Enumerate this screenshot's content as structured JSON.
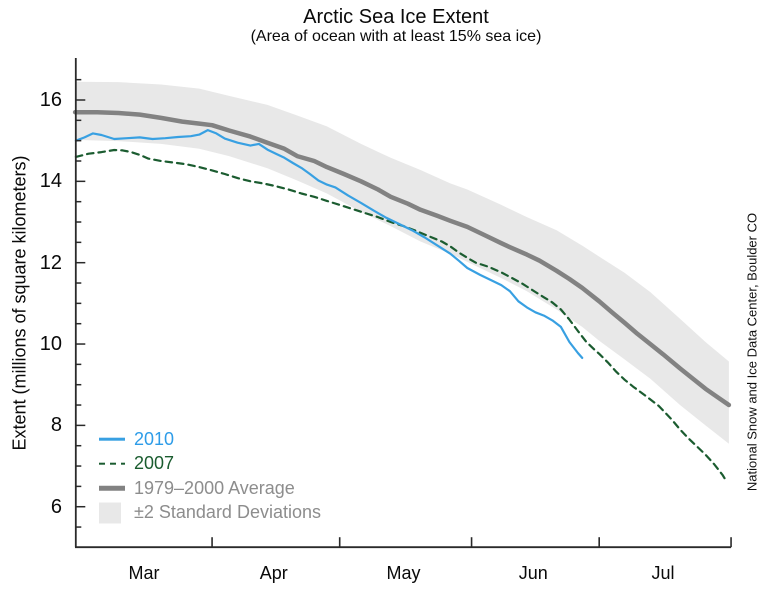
{
  "chart_data": {
    "type": "line",
    "title": "Arctic Sea Ice Extent",
    "subtitle": "(Area of ocean with at least 15% sea ice)",
    "ylabel": "Extent (millions of square kilometers)",
    "credit": "National Snow and Ice Data Center, Boulder CO",
    "x_unit": "days since Mar 1",
    "grid": false,
    "y_axis": {
      "range": [
        5.0,
        17.05
      ],
      "major_ticks": [
        16,
        14,
        12,
        10,
        8,
        6
      ],
      "minor_step": 0.5,
      "minor_range": [
        5.5,
        16.5
      ]
    },
    "x_axis": {
      "tick_days": [
        31,
        61,
        92,
        122,
        153
      ],
      "months": [
        {
          "label": "Mar",
          "center_day": 15
        },
        {
          "label": "Apr",
          "center_day": 45.5
        },
        {
          "label": "May",
          "center_day": 76
        },
        {
          "label": "Jun",
          "center_day": 106.5
        },
        {
          "label": "Jul",
          "center_day": 137
        }
      ]
    },
    "band": {
      "name": "±2 Standard Deviations",
      "color": "#e8e8e8",
      "points": [
        [
          -1.2,
          15.02,
          16.45
        ],
        [
          9,
          14.99,
          16.44
        ],
        [
          19,
          14.92,
          16.38
        ],
        [
          28,
          14.8,
          16.28
        ],
        [
          35,
          14.62,
          16.1
        ],
        [
          44,
          14.32,
          15.88
        ],
        [
          51,
          14.02,
          15.62
        ],
        [
          58,
          13.7,
          15.35
        ],
        [
          66,
          13.25,
          14.92
        ],
        [
          73,
          12.9,
          14.58
        ],
        [
          80,
          12.52,
          14.28
        ],
        [
          87,
          12.22,
          13.95
        ],
        [
          91,
          12.02,
          13.8
        ],
        [
          99,
          11.62,
          13.42
        ],
        [
          105,
          11.3,
          13.12
        ],
        [
          112,
          10.85,
          12.8
        ],
        [
          118,
          10.42,
          12.42
        ],
        [
          122,
          10.08,
          12.15
        ],
        [
          128,
          9.62,
          11.75
        ],
        [
          134,
          9.15,
          11.28
        ],
        [
          141,
          8.5,
          10.62
        ],
        [
          147,
          8.0,
          10.05
        ],
        [
          152.5,
          7.55,
          9.57
        ]
      ]
    },
    "series": [
      {
        "name": "1979–2000 Average",
        "color": "#828282",
        "style": "solid",
        "width": 4.5,
        "points": [
          [
            -1.2,
            15.7
          ],
          [
            4,
            15.7
          ],
          [
            9,
            15.68
          ],
          [
            14,
            15.64
          ],
          [
            19,
            15.56
          ],
          [
            24,
            15.47
          ],
          [
            28,
            15.42
          ],
          [
            31,
            15.38
          ],
          [
            35,
            15.25
          ],
          [
            40,
            15.1
          ],
          [
            44,
            14.95
          ],
          [
            48,
            14.8
          ],
          [
            51,
            14.62
          ],
          [
            55,
            14.5
          ],
          [
            58,
            14.35
          ],
          [
            62,
            14.18
          ],
          [
            66,
            14.0
          ],
          [
            70,
            13.8
          ],
          [
            73,
            13.62
          ],
          [
            77,
            13.45
          ],
          [
            80,
            13.3
          ],
          [
            84,
            13.15
          ],
          [
            87,
            13.03
          ],
          [
            91,
            12.88
          ],
          [
            95,
            12.68
          ],
          [
            99,
            12.48
          ],
          [
            101,
            12.38
          ],
          [
            105,
            12.2
          ],
          [
            108,
            12.05
          ],
          [
            112,
            11.8
          ],
          [
            115,
            11.6
          ],
          [
            118,
            11.38
          ],
          [
            122,
            11.05
          ],
          [
            125,
            10.78
          ],
          [
            128,
            10.52
          ],
          [
            131,
            10.25
          ],
          [
            134,
            10.0
          ],
          [
            137,
            9.75
          ],
          [
            141,
            9.4
          ],
          [
            144,
            9.15
          ],
          [
            147,
            8.9
          ],
          [
            150,
            8.68
          ],
          [
            152.5,
            8.5
          ]
        ]
      },
      {
        "name": "2007",
        "color": "#1b5c30",
        "style": "dashed",
        "width": 2.2,
        "points": [
          [
            -1,
            14.6
          ],
          [
            2,
            14.68
          ],
          [
            5,
            14.72
          ],
          [
            8,
            14.77
          ],
          [
            10,
            14.76
          ],
          [
            12,
            14.72
          ],
          [
            14,
            14.65
          ],
          [
            16,
            14.56
          ],
          [
            19,
            14.5
          ],
          [
            22,
            14.46
          ],
          [
            25,
            14.42
          ],
          [
            28,
            14.35
          ],
          [
            31,
            14.27
          ],
          [
            34,
            14.18
          ],
          [
            37,
            14.08
          ],
          [
            40,
            14.0
          ],
          [
            43,
            13.95
          ],
          [
            46,
            13.88
          ],
          [
            49,
            13.8
          ],
          [
            52,
            13.7
          ],
          [
            55,
            13.62
          ],
          [
            58,
            13.52
          ],
          [
            61,
            13.42
          ],
          [
            64,
            13.32
          ],
          [
            67,
            13.22
          ],
          [
            70,
            13.12
          ],
          [
            73,
            13.0
          ],
          [
            76,
            12.9
          ],
          [
            79,
            12.78
          ],
          [
            82,
            12.65
          ],
          [
            85,
            12.52
          ],
          [
            87,
            12.4
          ],
          [
            89,
            12.25
          ],
          [
            91,
            12.12
          ],
          [
            93,
            12.0
          ],
          [
            96,
            11.9
          ],
          [
            99,
            11.76
          ],
          [
            101,
            11.65
          ],
          [
            104,
            11.48
          ],
          [
            107,
            11.28
          ],
          [
            109,
            11.15
          ],
          [
            111,
            11.02
          ],
          [
            113,
            10.85
          ],
          [
            115,
            10.6
          ],
          [
            117,
            10.32
          ],
          [
            119,
            10.05
          ],
          [
            121,
            9.85
          ],
          [
            122,
            9.76
          ],
          [
            124,
            9.55
          ],
          [
            126,
            9.32
          ],
          [
            128,
            9.12
          ],
          [
            130,
            8.95
          ],
          [
            133,
            8.72
          ],
          [
            136,
            8.48
          ],
          [
            139,
            8.15
          ],
          [
            141,
            7.9
          ],
          [
            143,
            7.68
          ],
          [
            145,
            7.48
          ],
          [
            147,
            7.28
          ],
          [
            149,
            7.05
          ],
          [
            151,
            6.78
          ],
          [
            152,
            6.61
          ]
        ]
      },
      {
        "name": "2010",
        "color": "#38a0e2",
        "style": "solid",
        "width": 2.2,
        "points": [
          [
            -1,
            15.0
          ],
          [
            1,
            15.08
          ],
          [
            3,
            15.18
          ],
          [
            5,
            15.14
          ],
          [
            8,
            15.04
          ],
          [
            11,
            15.06
          ],
          [
            14,
            15.08
          ],
          [
            17,
            15.04
          ],
          [
            20,
            15.06
          ],
          [
            23,
            15.09
          ],
          [
            26,
            15.11
          ],
          [
            28,
            15.15
          ],
          [
            30,
            15.26
          ],
          [
            32,
            15.18
          ],
          [
            34,
            15.05
          ],
          [
            37,
            14.95
          ],
          [
            40,
            14.88
          ],
          [
            42,
            14.92
          ],
          [
            44,
            14.78
          ],
          [
            46,
            14.68
          ],
          [
            48,
            14.58
          ],
          [
            50,
            14.45
          ],
          [
            52,
            14.33
          ],
          [
            54,
            14.18
          ],
          [
            56,
            14.02
          ],
          [
            58,
            13.92
          ],
          [
            60,
            13.85
          ],
          [
            63,
            13.65
          ],
          [
            66,
            13.47
          ],
          [
            69,
            13.28
          ],
          [
            72,
            13.1
          ],
          [
            75,
            12.95
          ],
          [
            78,
            12.8
          ],
          [
            81,
            12.62
          ],
          [
            84,
            12.42
          ],
          [
            87,
            12.22
          ],
          [
            89,
            12.05
          ],
          [
            91,
            11.87
          ],
          [
            94,
            11.7
          ],
          [
            97,
            11.55
          ],
          [
            99,
            11.45
          ],
          [
            101,
            11.3
          ],
          [
            103,
            11.05
          ],
          [
            105,
            10.9
          ],
          [
            107,
            10.78
          ],
          [
            109,
            10.7
          ],
          [
            111,
            10.58
          ],
          [
            113,
            10.42
          ],
          [
            115,
            10.05
          ],
          [
            117,
            9.78
          ],
          [
            118,
            9.66
          ]
        ]
      }
    ]
  },
  "legend": {
    "items": [
      {
        "label": "2010",
        "kind": "line",
        "color": "#38a0e2",
        "text_color": "#2d9ce8"
      },
      {
        "label": "2007",
        "kind": "dashed",
        "color": "#1b5c30",
        "text_color": "#1a5c2f"
      },
      {
        "label": "1979–2000 Average",
        "kind": "thick",
        "color": "#828282",
        "text_color": "#8d8d8d"
      },
      {
        "label": "±2 Standard Deviations",
        "kind": "box",
        "color": "#e8e8e8",
        "text_color": "#8d8d8d"
      }
    ]
  },
  "colors": {
    "axis": "#2a2a2a",
    "background": "#ffffff",
    "band": "#e8e8e8"
  }
}
